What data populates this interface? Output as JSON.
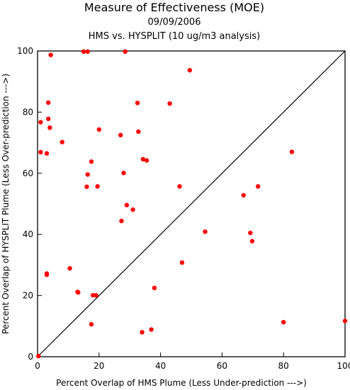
{
  "chart_data": {
    "type": "scatter",
    "title": "Measure of Effectiveness (MOE)",
    "subtitle": "09/09/2006",
    "subtitle2": "HMS vs. HYSPLIT  (10 ug/m3 analysis)",
    "xlabel": "Percent Overlap of HMS Plume (Less Under-prediction --->)",
    "ylabel": "Percent Overlap of HYSPLIT Plume (Less Over-prediction --->)",
    "xlim": [
      0,
      100
    ],
    "ylim": [
      0,
      100
    ],
    "xticks": [
      0,
      20,
      40,
      60,
      80,
      100
    ],
    "yticks": [
      0,
      20,
      40,
      60,
      80,
      100
    ],
    "grid": false,
    "reference_line": "y = x",
    "point_color": "#ff0000",
    "x": [
      0.3,
      1.0,
      1.0,
      3.0,
      3.0,
      3.0,
      3.5,
      3.5,
      4.0,
      4.3,
      8.0,
      10.5,
      13.0,
      13.2,
      15.0,
      16.0,
      16.3,
      16.3,
      17.5,
      17.5,
      18.0,
      19.0,
      19.5,
      20.0,
      27.0,
      27.3,
      28.0,
      28.5,
      29.0,
      31.0,
      32.5,
      32.8,
      34.0,
      34.3,
      35.5,
      37.0,
      38.0,
      43.0,
      46.2,
      47.0,
      49.5,
      54.5,
      67.0,
      69.2,
      69.8,
      71.7,
      80.0,
      82.7,
      100.0
    ],
    "y": [
      0.2,
      76.7,
      66.9,
      66.5,
      27.2,
      26.8,
      83.1,
      77.8,
      74.9,
      98.7,
      70.2,
      28.9,
      21.2,
      21.0,
      99.8,
      55.6,
      59.6,
      99.8,
      63.8,
      10.6,
      20.1,
      20.1,
      55.7,
      74.3,
      72.5,
      44.4,
      60.1,
      99.8,
      49.6,
      48.1,
      83.0,
      73.6,
      8.0,
      64.6,
      64.2,
      8.9,
      22.5,
      82.8,
      55.7,
      30.8,
      93.7,
      40.9,
      52.8,
      40.5,
      37.8,
      55.7,
      11.3,
      67.0,
      11.7
    ]
  }
}
